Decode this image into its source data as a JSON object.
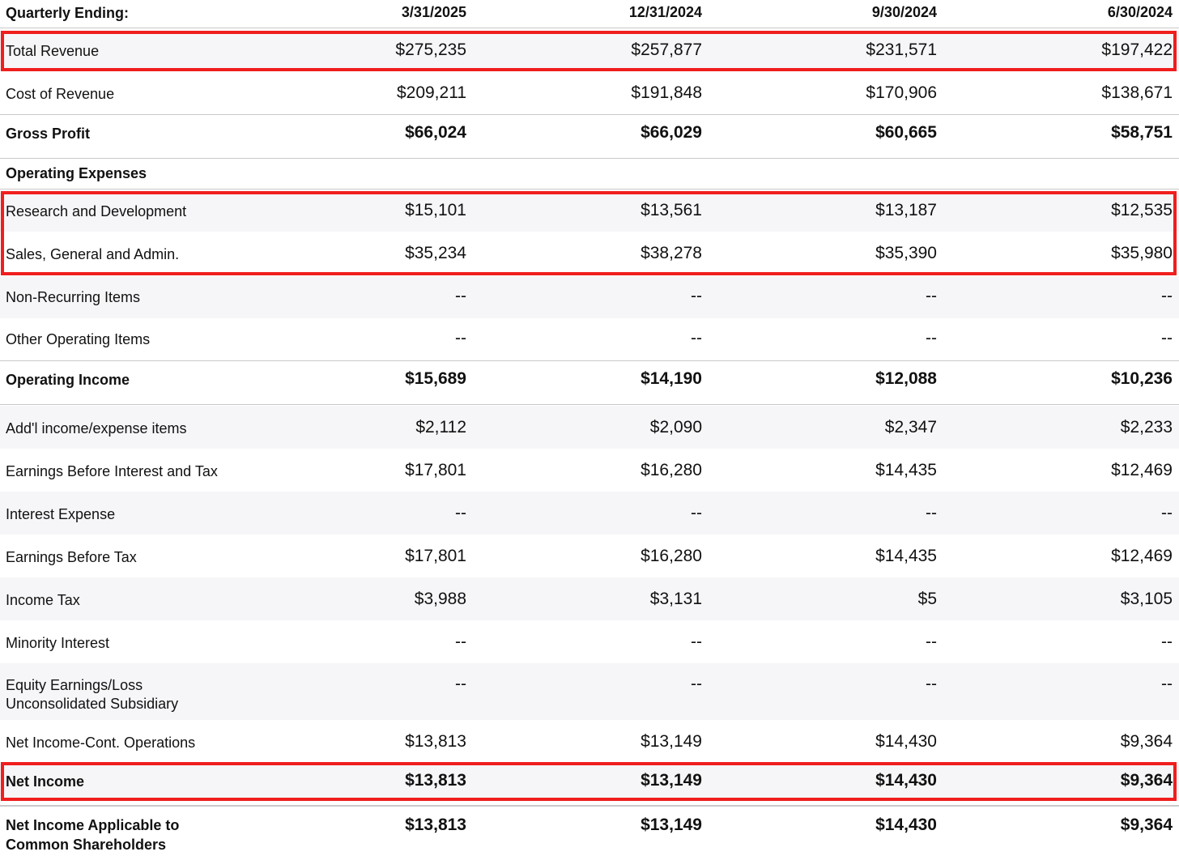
{
  "header": {
    "label": "Quarterly Ending:",
    "periods": [
      "3/31/2025",
      "12/31/2024",
      "9/30/2024",
      "6/30/2024"
    ]
  },
  "rows": {
    "total_revenue": {
      "label": "Total Revenue",
      "values": [
        "$275,235",
        "$257,877",
        "$231,571",
        "$197,422"
      ]
    },
    "cost_of_revenue": {
      "label": "Cost of Revenue",
      "values": [
        "$209,211",
        "$191,848",
        "$170,906",
        "$138,671"
      ]
    },
    "gross_profit": {
      "label": "Gross Profit",
      "values": [
        "$66,024",
        "$66,029",
        "$60,665",
        "$58,751"
      ]
    },
    "operating_expenses": {
      "label": "Operating Expenses"
    },
    "research_development": {
      "label": "Research and Development",
      "values": [
        "$15,101",
        "$13,561",
        "$13,187",
        "$12,535"
      ]
    },
    "sga": {
      "label": "Sales, General and Admin.",
      "values": [
        "$35,234",
        "$38,278",
        "$35,390",
        "$35,980"
      ]
    },
    "non_recurring": {
      "label": "Non-Recurring Items",
      "values": [
        "--",
        "--",
        "--",
        "--"
      ]
    },
    "other_operating": {
      "label": "Other Operating Items",
      "values": [
        "--",
        "--",
        "--",
        "--"
      ]
    },
    "operating_income": {
      "label": "Operating Income",
      "values": [
        "$15,689",
        "$14,190",
        "$12,088",
        "$10,236"
      ]
    },
    "addl_income": {
      "label": "Add'l income/expense items",
      "values": [
        "$2,112",
        "$2,090",
        "$2,347",
        "$2,233"
      ]
    },
    "ebit": {
      "label": "Earnings Before Interest and Tax",
      "values": [
        "$17,801",
        "$16,280",
        "$14,435",
        "$12,469"
      ]
    },
    "interest_expense": {
      "label": "Interest Expense",
      "values": [
        "--",
        "--",
        "--",
        "--"
      ]
    },
    "ebt": {
      "label": "Earnings Before Tax",
      "values": [
        "$17,801",
        "$16,280",
        "$14,435",
        "$12,469"
      ]
    },
    "income_tax": {
      "label": "Income Tax",
      "values": [
        "$3,988",
        "$3,131",
        "$5",
        "$3,105"
      ]
    },
    "minority_interest": {
      "label": "Minority Interest",
      "values": [
        "--",
        "--",
        "--",
        "--"
      ]
    },
    "equity_earnings": {
      "label_line1": "Equity Earnings/Loss",
      "label_line2": "Unconsolidated Subsidiary",
      "values": [
        "--",
        "--",
        "--",
        "--"
      ]
    },
    "net_income_cont": {
      "label": "Net Income-Cont. Operations",
      "values": [
        "$13,813",
        "$13,149",
        "$14,430",
        "$9,364"
      ]
    },
    "net_income": {
      "label": "Net Income",
      "values": [
        "$13,813",
        "$13,149",
        "$14,430",
        "$9,364"
      ]
    },
    "net_income_common": {
      "label_line1": "Net Income Applicable to",
      "label_line2": "Common Shareholders",
      "values": [
        "$13,813",
        "$13,149",
        "$14,430",
        "$9,364"
      ]
    }
  },
  "colors": {
    "highlight": "#f01e1e",
    "alt_row": "#f6f6f9",
    "rule": "#c9c9c9"
  }
}
